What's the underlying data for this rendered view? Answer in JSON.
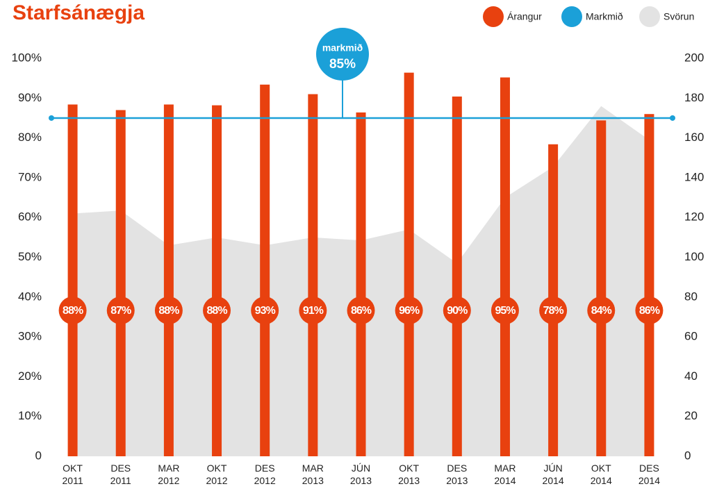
{
  "chart_data": {
    "type": "bar",
    "title": "Starfsánægja",
    "categories": [
      "OKT 2011",
      "DES 2011",
      "MAR 2012",
      "OKT 2012",
      "DES 2012",
      "MAR 2013",
      "JÚN 2013",
      "OKT 2013",
      "DES 2013",
      "MAR 2014",
      "JÚN 2014",
      "OKT 2014",
      "DES 2014"
    ],
    "series": [
      {
        "name": "Árangur",
        "color": "#e8410f",
        "values": [
          88.4,
          87,
          88.4,
          88.2,
          93.4,
          91,
          86.4,
          96.4,
          90.4,
          95.2,
          78.4,
          84.4,
          86
        ],
        "value_labels": [
          "88%",
          "87%",
          "88%",
          "88%",
          "93%",
          "91%",
          "86%",
          "96%",
          "90%",
          "95%",
          "78%",
          "84%",
          "86%"
        ]
      },
      {
        "name": "Svörun",
        "color": "#e3e3e3",
        "type": "area",
        "axis": "y2",
        "values": [
          122,
          123.5,
          106,
          110,
          106,
          110,
          108.5,
          114,
          97,
          130,
          145.5,
          176,
          159
        ]
      }
    ],
    "target": {
      "name": "Markmið",
      "color": "#1ba0d8",
      "value": 85,
      "value_label": "85%",
      "annotation": "markmið"
    },
    "ylim": [
      0,
      100
    ],
    "yticks": [
      0,
      {
        "value": 10,
        "label": "10%"
      },
      {
        "value": 20,
        "label": "20%"
      },
      {
        "value": 30,
        "label": "30%"
      },
      {
        "value": 40,
        "label": "40%"
      },
      {
        "value": 50,
        "label": "50%"
      },
      {
        "value": 60,
        "label": "60%"
      },
      {
        "value": 70,
        "label": "70%"
      },
      {
        "value": 80,
        "label": "80%"
      },
      {
        "value": 90,
        "label": "90%"
      },
      {
        "value": 100,
        "label": "100%"
      }
    ],
    "y2lim": [
      0,
      200
    ],
    "y2ticks": [
      0,
      20,
      40,
      60,
      80,
      100,
      120,
      140,
      160,
      180,
      200
    ],
    "legend": "top-right"
  }
}
